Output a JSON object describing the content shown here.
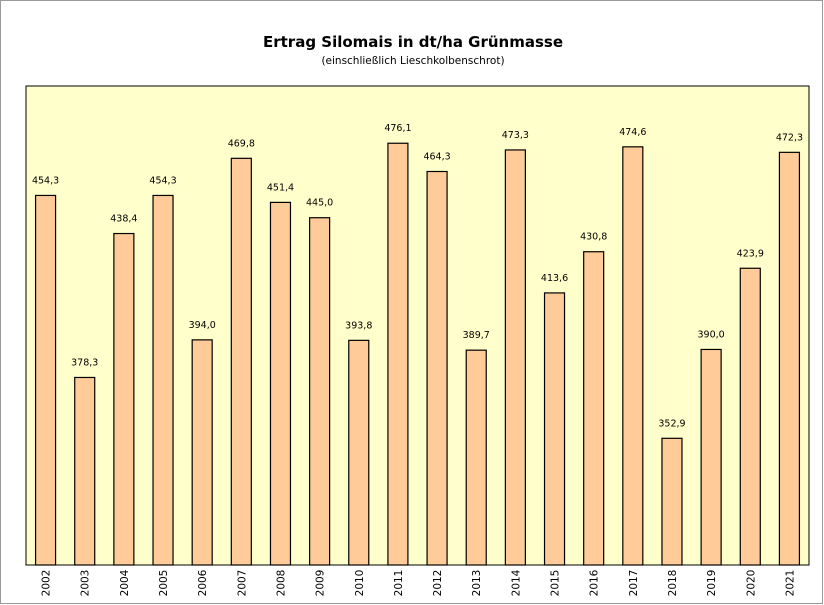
{
  "chart_data": {
    "type": "bar",
    "title": "Ertrag Silomais in dt/ha Grünmasse",
    "subtitle": "(einschließlich Lieschkolbenschrot)",
    "categories": [
      "2002",
      "2003",
      "2004",
      "2005",
      "2006",
      "2007",
      "2008",
      "2009",
      "2010",
      "2011",
      "2012",
      "2013",
      "2014",
      "2015",
      "2016",
      "2017",
      "2018",
      "2019",
      "2020",
      "2021"
    ],
    "values": [
      454.3,
      378.3,
      438.4,
      454.3,
      394.0,
      469.8,
      451.4,
      445.0,
      393.8,
      476.1,
      464.3,
      389.7,
      473.3,
      413.6,
      430.8,
      474.6,
      352.9,
      390.0,
      423.9,
      472.3
    ],
    "value_labels": [
      "454,3",
      "378,3",
      "438,4",
      "454,3",
      "394,0",
      "469,8",
      "451,4",
      "445,0",
      "393,8",
      "476,1",
      "464,3",
      "389,7",
      "473,3",
      "413,6",
      "430,8",
      "474,6",
      "352,9",
      "390,0",
      "423,9",
      "472,3"
    ],
    "color": "#ffcc99",
    "plot_background": "#ffffcc",
    "ylim": [
      300,
      500
    ]
  }
}
